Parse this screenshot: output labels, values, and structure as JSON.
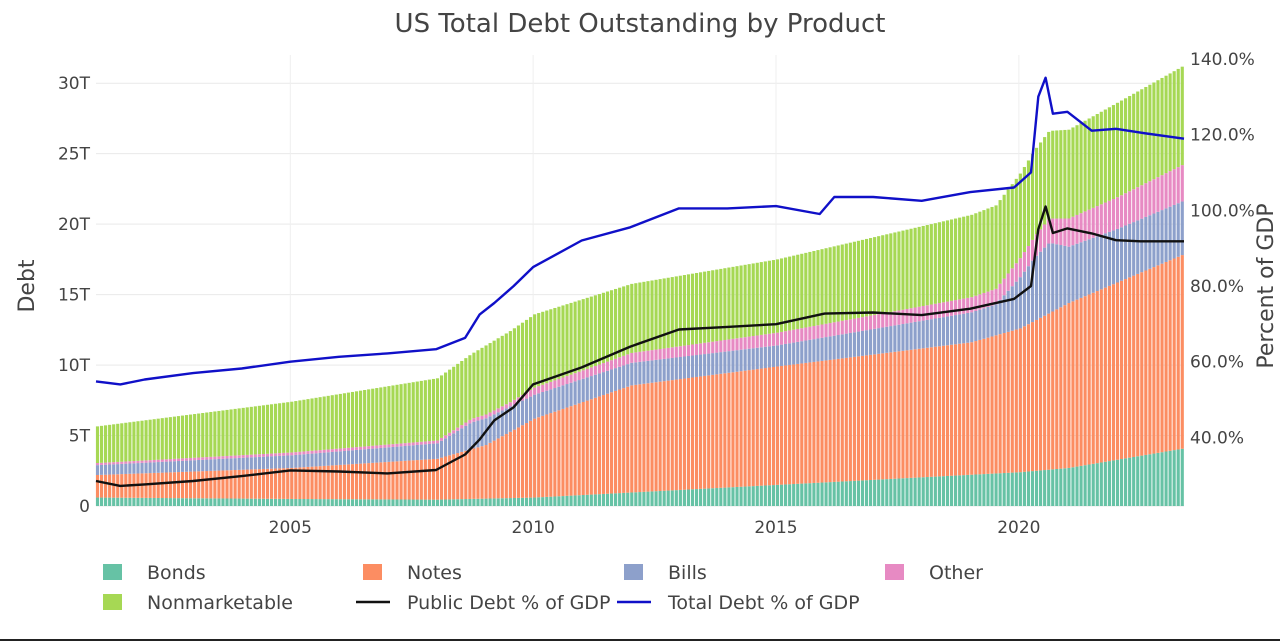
{
  "chart_data": {
    "type": "bar",
    "title": "US Total Debt Outstanding by Product",
    "xlabel": "",
    "ylabel": "Debt",
    "y2label": "Percent of GDP",
    "xlim": [
      2001.0,
      2023.4
    ],
    "ylim": [
      0,
      32
    ],
    "y2lim": [
      21.9,
      141.0
    ],
    "x_ticks": [
      2005,
      2010,
      2015,
      2020
    ],
    "x_tick_labels": [
      "2005",
      "2010",
      "2015",
      "2020"
    ],
    "y_ticks": [
      0,
      5,
      10,
      15,
      20,
      25,
      30
    ],
    "y_tick_labels": [
      "0",
      "5T",
      "10T",
      "15T",
      "20T",
      "25T",
      "30T"
    ],
    "y2_ticks": [
      40,
      60,
      80,
      100,
      120,
      140
    ],
    "y2_tick_labels": [
      "40.0%",
      "60.0%",
      "80.0%",
      "100.0%",
      "120.0%",
      "140.0%"
    ],
    "grid": true,
    "legend_position": "bottom",
    "colors": {
      "Bonds": "#66c2a5",
      "Notes": "#fc8d62",
      "Bills": "#8da0cb",
      "Other": "#e78ac3",
      "Nonmarketable": "#a6d854",
      "Public Debt % of GDP": "#111111",
      "Total Debt % of GDP": "#1010c8"
    },
    "stack_series": [
      {
        "name": "Bonds",
        "x": [
          2001,
          2005,
          2008,
          2010,
          2015,
          2020,
          2021,
          2023.4
        ],
        "values": [
          0.6,
          0.5,
          0.45,
          0.6,
          1.5,
          2.4,
          2.7,
          4.1
        ]
      },
      {
        "name": "Notes",
        "x": [
          2001,
          2005,
          2008,
          2009,
          2010,
          2012,
          2015,
          2019,
          2020,
          2021,
          2023.4
        ],
        "values": [
          1.6,
          2.2,
          2.9,
          3.8,
          5.6,
          7.6,
          8.4,
          9.4,
          10.2,
          11.7,
          13.8
        ]
      },
      {
        "name": "Bills",
        "x": [
          2001,
          2005,
          2008,
          2008.7,
          2009,
          2010,
          2012,
          2015,
          2019.5,
          2020.3,
          2020.6,
          2021,
          2022,
          2023.4
        ],
        "values": [
          0.7,
          0.9,
          1.1,
          1.9,
          1.9,
          1.7,
          1.6,
          1.5,
          2.2,
          4.5,
          5.0,
          4.0,
          3.8,
          3.8
        ]
      },
      {
        "name": "Other",
        "x": [
          2001,
          2005,
          2008,
          2009.5,
          2010,
          2012,
          2015,
          2019.5,
          2020.3,
          2021,
          2023.4
        ],
        "values": [
          0.15,
          0.2,
          0.2,
          0.3,
          0.5,
          0.7,
          0.9,
          1.1,
          1.5,
          2.0,
          2.6
        ]
      },
      {
        "name": "Nonmarketable",
        "x": [
          2001,
          2005,
          2008.7,
          2009,
          2010,
          2012,
          2015,
          2020,
          2020.5,
          2021,
          2022,
          2023.4
        ],
        "values": [
          2.6,
          3.6,
          4.6,
          4.9,
          5.2,
          4.9,
          5.2,
          6.0,
          6.2,
          6.3,
          6.7,
          7.0
        ]
      }
    ],
    "line_series": [
      {
        "name": "Public Debt % of GDP",
        "axis": "y2",
        "x": [
          2001,
          2001.5,
          2002,
          2003,
          2004,
          2005,
          2006,
          2007,
          2008,
          2008.6,
          2008.9,
          2009.2,
          2009.6,
          2010,
          2011,
          2012,
          2013,
          2014,
          2015,
          2016,
          2017,
          2018,
          2019,
          2019.9,
          2020.25,
          2020.4,
          2020.55,
          2020.7,
          2021,
          2021.5,
          2022,
          2022.5,
          2023.4
        ],
        "values": [
          28.5,
          27.2,
          27.6,
          28.5,
          29.8,
          31.3,
          31.0,
          30.5,
          31.4,
          35.5,
          39.5,
          44.5,
          48.0,
          54.0,
          58.5,
          64.0,
          68.5,
          69.2,
          69.9,
          72.7,
          73.0,
          72.3,
          74.0,
          76.6,
          80.0,
          95.0,
          101.0,
          94.0,
          95.2,
          93.9,
          92.1,
          91.8,
          91.8
        ]
      },
      {
        "name": "Total Debt % of GDP",
        "axis": "y2",
        "x": [
          2001,
          2001.5,
          2002,
          2003,
          2004,
          2005,
          2006,
          2007,
          2008,
          2008.6,
          2008.9,
          2009.2,
          2009.6,
          2010,
          2011,
          2012,
          2013,
          2014,
          2015,
          2015.9,
          2016.2,
          2017,
          2018,
          2019,
          2019.9,
          2020.25,
          2020.4,
          2020.55,
          2020.7,
          2021,
          2021.5,
          2022,
          2022.5,
          2023.4
        ],
        "values": [
          54.8,
          54.0,
          55.3,
          57.0,
          58.2,
          60.0,
          61.3,
          62.2,
          63.3,
          66.3,
          72.5,
          75.5,
          80.0,
          85.0,
          92.0,
          95.5,
          100.5,
          100.5,
          101.1,
          99.0,
          103.5,
          103.5,
          102.5,
          104.8,
          106.0,
          110.0,
          130.0,
          135.0,
          125.5,
          126.0,
          121.0,
          121.5,
          120.5,
          118.9
        ]
      }
    ],
    "legend": [
      {
        "name": "Bonds",
        "kind": "swatch"
      },
      {
        "name": "Notes",
        "kind": "swatch"
      },
      {
        "name": "Bills",
        "kind": "swatch"
      },
      {
        "name": "Other",
        "kind": "swatch"
      },
      {
        "name": "Nonmarketable",
        "kind": "swatch"
      },
      {
        "name": "Public Debt % of GDP",
        "kind": "line"
      },
      {
        "name": "Total Debt % of GDP",
        "kind": "line"
      }
    ]
  }
}
